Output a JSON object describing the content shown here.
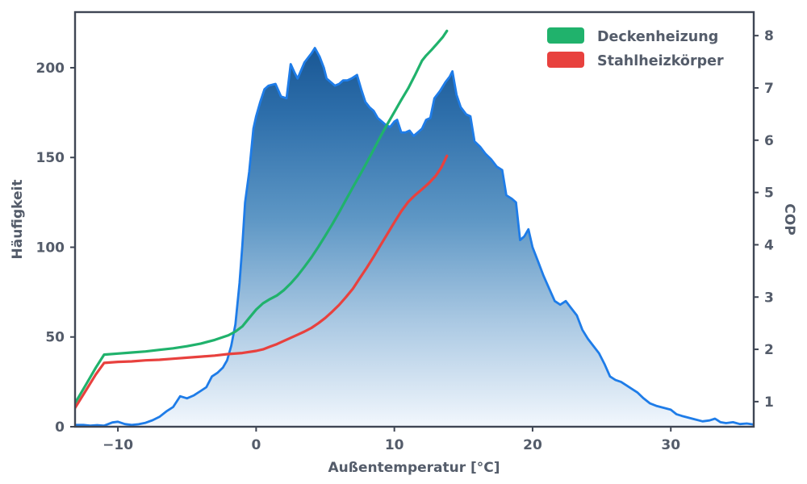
{
  "chart_data": {
    "type": "area",
    "title": "",
    "xlabel": "Außentemperatur [°C]",
    "ylabel_left": "Häufigkeit",
    "ylabel_right": "COP",
    "xlim": [
      -13.1,
      36.0
    ],
    "ylim_left": [
      0,
      231
    ],
    "ylim_right": [
      0.52,
      8.45
    ],
    "xticks": [
      -10,
      0,
      10,
      20,
      30
    ],
    "xtick_labels": [
      "−10",
      "0",
      "10",
      "20",
      "30"
    ],
    "yticks_left": [
      0,
      50,
      100,
      150,
      200
    ],
    "ytick_labels_left": [
      "0",
      "50",
      "100",
      "150",
      "200"
    ],
    "yticks_right": [
      1,
      2,
      3,
      4,
      5,
      6,
      7,
      8
    ],
    "ytick_labels_right": [
      "1",
      "2",
      "3",
      "4",
      "5",
      "6",
      "7",
      "8"
    ],
    "grid": false,
    "legend": {
      "position": "upper right",
      "entries": [
        {
          "label": "Deckenheizung",
          "color": "#20b26c"
        },
        {
          "label": "Stahlheizkörper",
          "color": "#e8413e"
        }
      ]
    },
    "colors": {
      "area_line": "#1e7ce8",
      "green_line": "#20b26c",
      "red_line": "#e8413e",
      "spine": "#3f4654",
      "text": "#545c6a",
      "gradient_stops": [
        [
          "0%",
          "#0e4a88"
        ],
        [
          "25%",
          "#2e6fab"
        ],
        [
          "50%",
          "#5e97c5"
        ],
        [
          "75%",
          "#abc9e3"
        ],
        [
          "100%",
          "#f2f7fd"
        ]
      ]
    },
    "series": [
      {
        "name": "Häufigkeit",
        "type": "area",
        "axis": "left",
        "points": [
          [
            -13.1,
            1
          ],
          [
            -12.5,
            1
          ],
          [
            -12,
            0.6
          ],
          [
            -11.5,
            0.9
          ],
          [
            -11,
            0.6
          ],
          [
            -10.4,
            2.4
          ],
          [
            -10,
            2.8
          ],
          [
            -9.5,
            1.5
          ],
          [
            -9,
            1
          ],
          [
            -8.5,
            1.4
          ],
          [
            -8,
            2.2
          ],
          [
            -7.5,
            3.6
          ],
          [
            -7,
            5.5
          ],
          [
            -6.5,
            8.5
          ],
          [
            -6,
            11
          ],
          [
            -5.5,
            17
          ],
          [
            -5,
            15.8
          ],
          [
            -4.5,
            17.5
          ],
          [
            -4,
            20
          ],
          [
            -3.6,
            22
          ],
          [
            -3.2,
            28
          ],
          [
            -2.8,
            30
          ],
          [
            -2.4,
            33
          ],
          [
            -2.1,
            37
          ],
          [
            -1.8,
            45
          ],
          [
            -1.5,
            57
          ],
          [
            -1.2,
            80
          ],
          [
            -1,
            101
          ],
          [
            -0.8,
            125
          ],
          [
            -0.5,
            142
          ],
          [
            -0.2,
            166
          ],
          [
            0,
            173
          ],
          [
            0.3,
            181
          ],
          [
            0.6,
            188
          ],
          [
            0.9,
            190
          ],
          [
            1.4,
            191
          ],
          [
            1.8,
            184
          ],
          [
            2.2,
            183
          ],
          [
            2.5,
            202
          ],
          [
            2.8,
            197
          ],
          [
            3,
            194
          ],
          [
            3.5,
            203
          ],
          [
            4,
            208
          ],
          [
            4.25,
            211
          ],
          [
            4.6,
            206
          ],
          [
            4.9,
            200
          ],
          [
            5.1,
            194
          ],
          [
            5.4,
            192
          ],
          [
            5.7,
            190
          ],
          [
            6,
            191
          ],
          [
            6.3,
            193
          ],
          [
            6.6,
            193
          ],
          [
            6.9,
            194
          ],
          [
            7.3,
            196
          ],
          [
            7.6,
            188
          ],
          [
            7.9,
            181
          ],
          [
            8.2,
            178
          ],
          [
            8.5,
            176
          ],
          [
            8.8,
            172
          ],
          [
            9.1,
            170
          ],
          [
            9.4,
            168
          ],
          [
            9.7,
            167
          ],
          [
            10,
            170
          ],
          [
            10.2,
            171
          ],
          [
            10.5,
            164
          ],
          [
            10.8,
            164
          ],
          [
            11.1,
            165
          ],
          [
            11.4,
            162
          ],
          [
            11.7,
            164
          ],
          [
            12,
            166
          ],
          [
            12.3,
            171
          ],
          [
            12.6,
            172
          ],
          [
            12.9,
            183
          ],
          [
            13.3,
            187
          ],
          [
            13.7,
            192
          ],
          [
            14,
            195
          ],
          [
            14.2,
            198
          ],
          [
            14.5,
            185
          ],
          [
            14.8,
            178
          ],
          [
            15.2,
            174
          ],
          [
            15.5,
            173
          ],
          [
            15.8,
            159
          ],
          [
            16.2,
            156
          ],
          [
            16.6,
            152
          ],
          [
            17,
            149
          ],
          [
            17.4,
            145
          ],
          [
            17.8,
            143
          ],
          [
            18.1,
            129
          ],
          [
            18.5,
            127
          ],
          [
            18.8,
            125
          ],
          [
            19.1,
            104
          ],
          [
            19.4,
            106
          ],
          [
            19.7,
            110
          ],
          [
            20,
            100
          ],
          [
            20.4,
            92
          ],
          [
            20.8,
            84
          ],
          [
            21.2,
            77
          ],
          [
            21.6,
            70
          ],
          [
            22,
            68
          ],
          [
            22.4,
            70
          ],
          [
            22.8,
            66
          ],
          [
            23.2,
            62
          ],
          [
            23.6,
            54
          ],
          [
            24,
            49
          ],
          [
            24.4,
            45
          ],
          [
            24.8,
            41
          ],
          [
            25.2,
            35
          ],
          [
            25.6,
            28
          ],
          [
            26,
            26
          ],
          [
            26.4,
            25
          ],
          [
            26.8,
            23
          ],
          [
            27.2,
            21
          ],
          [
            27.6,
            19
          ],
          [
            28,
            16
          ],
          [
            28.5,
            13
          ],
          [
            29,
            11.5
          ],
          [
            29.5,
            10.5
          ],
          [
            30,
            9.5
          ],
          [
            30.4,
            7
          ],
          [
            30.8,
            6
          ],
          [
            31.3,
            5
          ],
          [
            31.8,
            4
          ],
          [
            32.3,
            3
          ],
          [
            32.8,
            3.5
          ],
          [
            33.2,
            4.5
          ],
          [
            33.6,
            2.5
          ],
          [
            34,
            2
          ],
          [
            34.5,
            2.5
          ],
          [
            35,
            1.5
          ],
          [
            35.5,
            1.8
          ],
          [
            36,
            1.2
          ]
        ]
      },
      {
        "name": "Deckenheizung",
        "type": "line",
        "axis": "right",
        "points": [
          [
            -13.1,
            0.97
          ],
          [
            -12.3,
            1.33
          ],
          [
            -11.6,
            1.65
          ],
          [
            -11,
            1.9
          ],
          [
            -10,
            1.92
          ],
          [
            -9,
            1.94
          ],
          [
            -8,
            1.96
          ],
          [
            -7,
            1.99
          ],
          [
            -6,
            2.02
          ],
          [
            -5,
            2.06
          ],
          [
            -4,
            2.11
          ],
          [
            -3,
            2.18
          ],
          [
            -2,
            2.27
          ],
          [
            -1.5,
            2.34
          ],
          [
            -1,
            2.44
          ],
          [
            -0.5,
            2.6
          ],
          [
            0,
            2.76
          ],
          [
            0.5,
            2.88
          ],
          [
            1,
            2.96
          ],
          [
            1.5,
            3.03
          ],
          [
            2,
            3.13
          ],
          [
            2.5,
            3.26
          ],
          [
            3,
            3.41
          ],
          [
            3.5,
            3.58
          ],
          [
            4,
            3.76
          ],
          [
            4.5,
            3.96
          ],
          [
            5,
            4.17
          ],
          [
            5.5,
            4.39
          ],
          [
            6,
            4.62
          ],
          [
            6.5,
            4.86
          ],
          [
            7,
            5.1
          ],
          [
            7.5,
            5.33
          ],
          [
            8,
            5.57
          ],
          [
            8.5,
            5.82
          ],
          [
            9,
            6.07
          ],
          [
            9.5,
            6.31
          ],
          [
            10,
            6.54
          ],
          [
            10.5,
            6.77
          ],
          [
            11,
            6.99
          ],
          [
            11.5,
            7.25
          ],
          [
            12,
            7.52
          ],
          [
            12.3,
            7.62
          ],
          [
            12.7,
            7.73
          ],
          [
            13.1,
            7.85
          ],
          [
            13.5,
            7.97
          ],
          [
            13.8,
            8.09
          ]
        ]
      },
      {
        "name": "Stahlheizkörper",
        "type": "line",
        "axis": "right",
        "points": [
          [
            -13.1,
            0.88
          ],
          [
            -12.3,
            1.22
          ],
          [
            -11.6,
            1.52
          ],
          [
            -11,
            1.74
          ],
          [
            -10,
            1.76
          ],
          [
            -9,
            1.77
          ],
          [
            -8,
            1.79
          ],
          [
            -7,
            1.8
          ],
          [
            -6,
            1.82
          ],
          [
            -5,
            1.84
          ],
          [
            -4,
            1.86
          ],
          [
            -3,
            1.88
          ],
          [
            -2,
            1.91
          ],
          [
            -1,
            1.93
          ],
          [
            0,
            1.97
          ],
          [
            0.5,
            2.0
          ],
          [
            1,
            2.05
          ],
          [
            1.5,
            2.1
          ],
          [
            2,
            2.16
          ],
          [
            2.5,
            2.22
          ],
          [
            3,
            2.28
          ],
          [
            3.5,
            2.34
          ],
          [
            4,
            2.41
          ],
          [
            4.5,
            2.5
          ],
          [
            5,
            2.6
          ],
          [
            5.5,
            2.72
          ],
          [
            6,
            2.85
          ],
          [
            6.5,
            3.0
          ],
          [
            7,
            3.16
          ],
          [
            7.5,
            3.36
          ],
          [
            8,
            3.56
          ],
          [
            8.5,
            3.77
          ],
          [
            9,
            3.99
          ],
          [
            9.5,
            4.21
          ],
          [
            10,
            4.43
          ],
          [
            10.5,
            4.64
          ],
          [
            11,
            4.82
          ],
          [
            11.5,
            4.95
          ],
          [
            12,
            5.06
          ],
          [
            12.5,
            5.18
          ],
          [
            13,
            5.32
          ],
          [
            13.4,
            5.48
          ],
          [
            13.8,
            5.7
          ]
        ]
      }
    ]
  }
}
